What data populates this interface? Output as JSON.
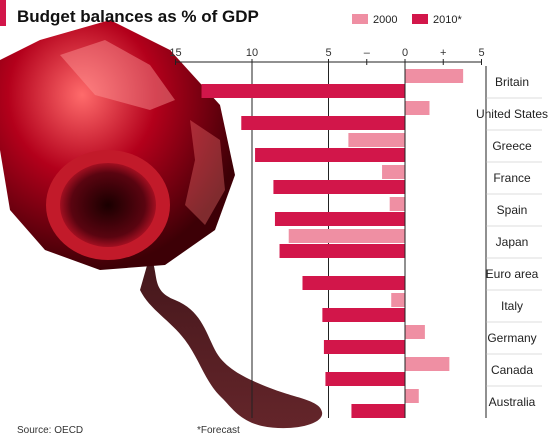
{
  "chart_data": {
    "type": "bar",
    "orientation": "horizontal",
    "title": "Budget balances as % of GDP",
    "categories": [
      "Britain",
      "United States",
      "Greece",
      "France",
      "Spain",
      "Japan",
      "Euro area",
      "Italy",
      "Germany",
      "Canada",
      "Australia"
    ],
    "series": [
      {
        "name": "2000",
        "values": [
          3.8,
          1.6,
          -3.7,
          -1.5,
          -1.0,
          -7.6,
          0.0,
          -0.9,
          1.3,
          2.9,
          0.9
        ]
      },
      {
        "name": "2010*",
        "values": [
          -13.3,
          -10.7,
          -9.8,
          -8.6,
          -8.5,
          -8.2,
          -6.7,
          -5.4,
          -5.3,
          -5.2,
          -3.5
        ]
      }
    ],
    "xlim": [
      -15,
      5
    ],
    "xticks": [
      {
        "value": -15,
        "label": "15"
      },
      {
        "value": -10,
        "label": "10"
      },
      {
        "value": -5,
        "label": "5"
      },
      {
        "value": -2.5,
        "label": "–"
      },
      {
        "value": 0,
        "label": "0"
      },
      {
        "value": 2.5,
        "label": "+"
      },
      {
        "value": 5,
        "label": "5"
      }
    ],
    "legend_position": "top-right",
    "colors": {
      "2000": "#ef8fa3",
      "2010*": "#d2164a"
    }
  },
  "source": "Source: OECD",
  "footnote": "*Forecast"
}
